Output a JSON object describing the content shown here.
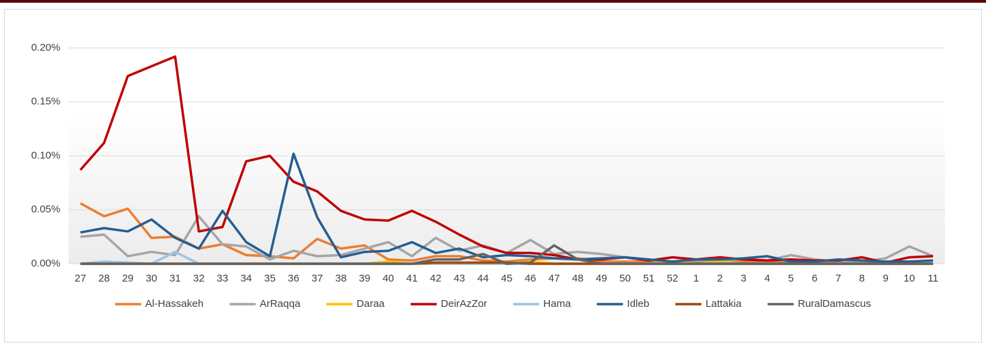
{
  "chart_data": {
    "type": "line",
    "categories": [
      "27",
      "28",
      "29",
      "30",
      "31",
      "32",
      "33",
      "34",
      "35",
      "36",
      "37",
      "38",
      "39",
      "40",
      "41",
      "42",
      "43",
      "44",
      "45",
      "46",
      "47",
      "48",
      "49",
      "50",
      "51",
      "52",
      "1",
      "2",
      "3",
      "4",
      "5",
      "6",
      "7",
      "8",
      "9",
      "10",
      "11"
    ],
    "series": [
      {
        "name": "Al-Hassakeh",
        "color": "#ed7d31",
        "values": [
          0.056,
          0.044,
          0.051,
          0.024,
          0.025,
          0.014,
          0.018,
          0.008,
          0.007,
          0.005,
          0.023,
          0.014,
          0.017,
          0.004,
          0.003,
          0.007,
          0.007,
          0.003,
          0.002,
          0.004,
          0.005,
          0.005,
          0.002,
          0.002,
          0.002,
          0.002,
          0.002,
          0.002,
          0.002,
          0.002,
          0.002,
          0.002,
          0.002,
          0.002,
          0.002,
          0.002,
          0.002
        ]
      },
      {
        "name": "ArRaqqa",
        "color": "#a5a5a5",
        "values": [
          0.025,
          0.027,
          0.007,
          0.011,
          0.008,
          0.044,
          0.018,
          0.016,
          0.004,
          0.012,
          0.007,
          0.008,
          0.014,
          0.02,
          0.007,
          0.024,
          0.012,
          0.017,
          0.01,
          0.022,
          0.009,
          0.011,
          0.009,
          0.006,
          0.003,
          0.002,
          0.003,
          0.003,
          0.004,
          0.003,
          0.008,
          0.004,
          0.002,
          0.002,
          0.005,
          0.016,
          0.007
        ]
      },
      {
        "name": "Daraa",
        "color": "#ffc000",
        "values": [
          0,
          0,
          0,
          0,
          0,
          0,
          0,
          0,
          0,
          0,
          0,
          0,
          0,
          0.002,
          0,
          0,
          0,
          0,
          0,
          0.002,
          0,
          0,
          0,
          0,
          0,
          0.002,
          0,
          0.002,
          0,
          0,
          0,
          0,
          0,
          0,
          0,
          0,
          0
        ]
      },
      {
        "name": "DeirAzZor",
        "color": "#c00000",
        "values": [
          0.087,
          0.112,
          0.174,
          0.183,
          0.192,
          0.03,
          0.034,
          0.095,
          0.1,
          0.076,
          0.067,
          0.049,
          0.041,
          0.04,
          0.049,
          0.039,
          0.027,
          0.016,
          0.01,
          0.01,
          0.008,
          0.004,
          0.004,
          0.006,
          0.003,
          0.006,
          0.004,
          0.006,
          0.004,
          0.003,
          0.004,
          0.003,
          0.003,
          0.006,
          0.001,
          0.006,
          0.007
        ]
      },
      {
        "name": "Hama",
        "color": "#9dc3e6",
        "values": [
          0,
          0.002,
          0.001,
          0,
          0.011,
          0,
          0,
          0,
          0,
          0,
          0,
          0,
          0,
          0,
          0,
          0,
          0,
          0,
          0,
          0,
          0,
          0,
          0,
          0,
          0,
          0,
          0,
          0,
          0,
          0,
          0,
          0,
          0,
          0,
          0,
          0,
          0.002
        ]
      },
      {
        "name": "Idleb",
        "color": "#255e91",
        "values": [
          0.029,
          0.033,
          0.03,
          0.041,
          0.024,
          0.014,
          0.049,
          0.02,
          0.007,
          0.102,
          0.043,
          0.006,
          0.011,
          0.012,
          0.02,
          0.01,
          0.014,
          0.006,
          0.008,
          0.007,
          0.005,
          0.004,
          0.005,
          0.006,
          0.004,
          0.002,
          0.004,
          0.004,
          0.005,
          0.007,
          0.002,
          0.002,
          0.004,
          0.003,
          0.002,
          0.002,
          0.003
        ]
      },
      {
        "name": "Lattakia",
        "color": "#9e480e",
        "values": [
          0,
          0,
          0,
          0,
          0,
          0,
          0,
          0,
          0,
          0,
          0,
          0,
          0,
          0,
          0,
          0.001,
          0.001,
          0.001,
          0.001,
          0,
          0,
          0,
          0,
          0,
          0,
          0,
          0,
          0,
          0,
          0,
          0,
          0,
          0,
          0,
          0,
          0,
          0
        ]
      },
      {
        "name": "RuralDamascus",
        "color": "#636363",
        "values": [
          0,
          0,
          0,
          0,
          0,
          0,
          0,
          0,
          0,
          0,
          0,
          0,
          0,
          0,
          0,
          0.004,
          0.004,
          0.009,
          0,
          0.001,
          0.017,
          0.004,
          0,
          0,
          0,
          0,
          0,
          0,
          0,
          0,
          0,
          0,
          0,
          0,
          0,
          0,
          0
        ]
      }
    ],
    "ylim": [
      0,
      0.2
    ],
    "yticks": [
      {
        "value": 0,
        "label": "0.00%"
      },
      {
        "value": 0.05,
        "label": "0.05%"
      },
      {
        "value": 0.1,
        "label": "0.10%"
      },
      {
        "value": 0.15,
        "label": "0.15%"
      },
      {
        "value": 0.2,
        "label": "0.20%"
      }
    ],
    "grid": true,
    "legend": "bottom"
  }
}
